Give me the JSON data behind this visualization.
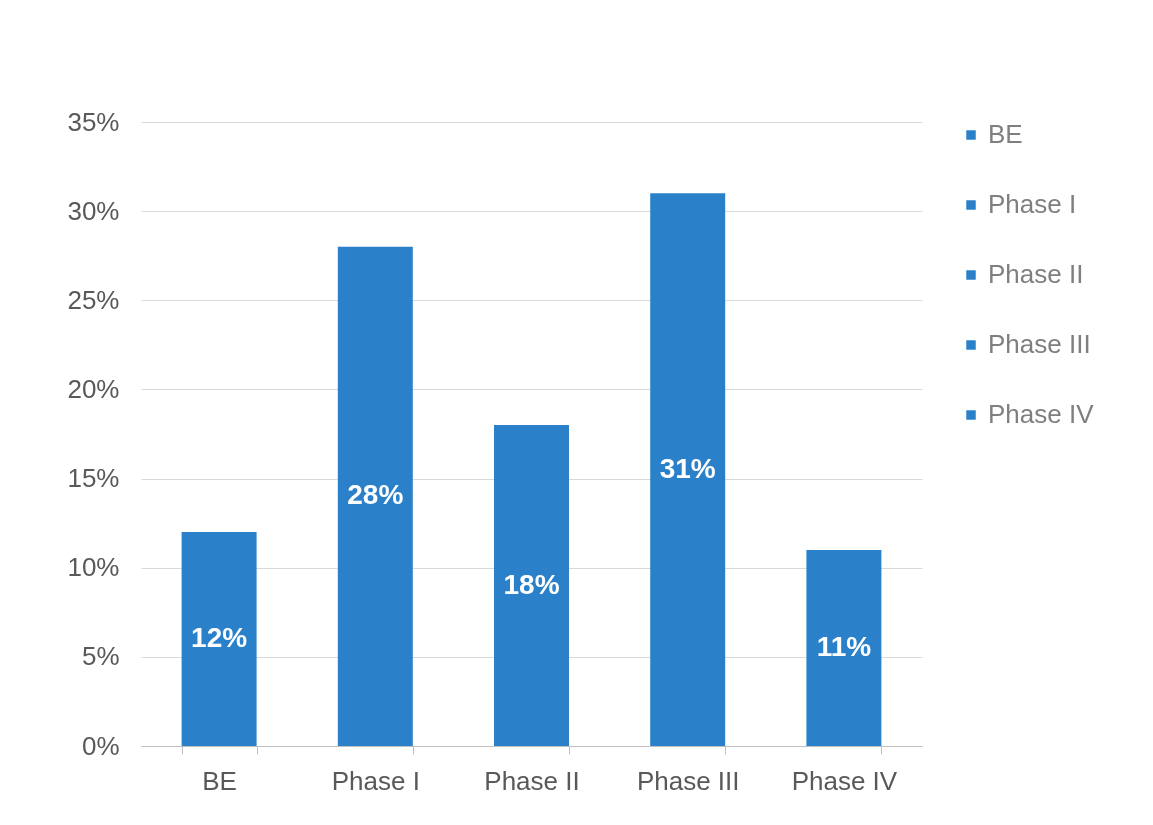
{
  "chart_data": {
    "type": "bar",
    "categories": [
      "BE",
      "Phase I",
      "Phase II",
      "Phase III",
      "Phase IV"
    ],
    "stacked": true,
    "series": [
      {
        "name": "BE",
        "color": "#2a80c9",
        "values": [
          12,
          null,
          null,
          null,
          null
        ],
        "value_labels": [
          "12%",
          null,
          null,
          null,
          null
        ]
      },
      {
        "name": "Phase I",
        "color": "#2a80c9",
        "values": [
          null,
          28,
          null,
          null,
          null
        ],
        "value_labels": [
          null,
          "28%",
          null,
          null,
          null
        ]
      },
      {
        "name": "Phase II",
        "color": "#2a80c9",
        "values": [
          null,
          null,
          18,
          null,
          null
        ],
        "value_labels": [
          null,
          null,
          "18%",
          null,
          null
        ]
      },
      {
        "name": "Phase III",
        "color": "#2a80c9",
        "values": [
          null,
          null,
          null,
          31,
          null
        ],
        "value_labels": [
          null,
          null,
          null,
          "31%",
          null
        ]
      },
      {
        "name": "Phase IV",
        "color": "#2a80c9",
        "values": [
          null,
          null,
          null,
          null,
          11
        ],
        "value_labels": [
          null,
          null,
          null,
          null,
          "11%"
        ]
      }
    ],
    "ylim": [
      0,
      35
    ],
    "yticks": [
      {
        "value": 0,
        "label": "0%"
      },
      {
        "value": 5,
        "label": "5%"
      },
      {
        "value": 10,
        "label": "10%"
      },
      {
        "value": 15,
        "label": "15%"
      },
      {
        "value": 20,
        "label": "20%"
      },
      {
        "value": 25,
        "label": "25%"
      },
      {
        "value": 30,
        "label": "30%"
      },
      {
        "value": 35,
        "label": "35%"
      }
    ],
    "grid": "y",
    "legend": "right"
  }
}
